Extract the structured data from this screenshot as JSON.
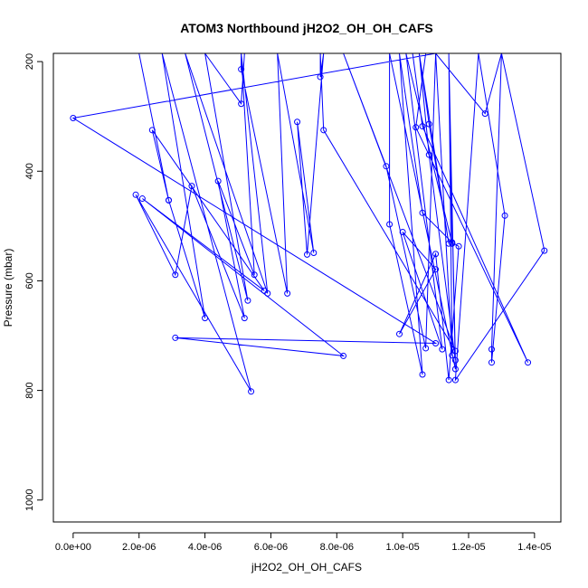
{
  "chart_data": {
    "type": "line",
    "title": "ATOM3 Northbound jH2O2_OH_OH_CAFS",
    "xlabel": "jH2O2_OH_OH_CAFS",
    "ylabel": "Pressure (mbar)",
    "xlim": [
      -6e-07,
      1.48e-05
    ],
    "ylim": [
      1040,
      185
    ],
    "y_axis_inverted": true,
    "x_ticks": [
      0,
      2e-06,
      4e-06,
      6e-06,
      8e-06,
      1e-05,
      1.2e-05,
      1.4e-05
    ],
    "x_tick_labels": [
      "0.0e+00",
      "2.0e-06",
      "4.0e-06",
      "6.0e-06",
      "8.0e-06",
      "1.0e-05",
      "1.2e-05",
      "1.4e-05"
    ],
    "y_ticks": [
      200,
      400,
      600,
      800,
      1000
    ],
    "y_tick_labels": [
      "200",
      "400",
      "600",
      "800",
      "1000"
    ],
    "grid": false,
    "series": [
      {
        "color": "#0000ff",
        "marker": "open-circle",
        "points": [
          [
            2e-06,
            185
          ],
          [
            2.9e-06,
            453
          ],
          [
            4e-06,
            668
          ],
          [
            2.7e-06,
            185
          ],
          [
            5.4e-06,
            802
          ],
          [
            1.9e-06,
            443
          ],
          [
            3.1e-06,
            589
          ],
          [
            3.6e-06,
            427
          ],
          [
            5.2e-06,
            668
          ],
          [
            4.4e-06,
            418
          ],
          [
            5.5e-06,
            589
          ],
          [
            5.1e-06,
            185
          ],
          [
            5.9e-06,
            623
          ],
          [
            3.4e-06,
            185
          ],
          [
            5.3e-06,
            636
          ],
          [
            4e-06,
            185
          ],
          [
            5.1e-06,
            277
          ],
          [
            5.2e-06,
            185
          ],
          [
            5.1e-06,
            185
          ],
          [
            5.1e-06,
            214
          ],
          [
            6.5e-06,
            623
          ],
          [
            6.2e-06,
            185
          ],
          [
            7.3e-06,
            549
          ],
          [
            6.8e-06,
            310
          ],
          [
            7.1e-06,
            552
          ],
          [
            7.6e-06,
            185
          ],
          [
            7.5e-06,
            228
          ],
          [
            7.5e-06,
            185
          ],
          [
            7.5e-06,
            185
          ],
          [
            7.6e-06,
            325
          ],
          [
            1.16e-05,
            728
          ],
          [
            8.2e-06,
            185
          ],
          [
            9.5e-06,
            391
          ],
          [
            1.07e-05,
            723
          ],
          [
            1.1e-05,
            185
          ],
          [
            1.25e-05,
            295
          ],
          [
            1.3e-05,
            185
          ],
          [
            1.43e-05,
            545
          ],
          [
            1.16e-05,
            781
          ],
          [
            1.23e-05,
            185
          ],
          [
            1.31e-05,
            481
          ],
          [
            1.27e-05,
            749
          ],
          [
            1.27e-05,
            725
          ],
          [
            1.3e-05,
            185
          ],
          [
            1.07e-05,
            185
          ],
          [
            1.04e-05,
            320
          ],
          [
            1.38e-05,
            749
          ],
          [
            1.06e-05,
            318
          ],
          [
            1.03e-05,
            185
          ],
          [
            1.05e-05,
            185
          ],
          [
            1.08e-05,
            314
          ],
          [
            1.14e-05,
            532
          ],
          [
            1.05e-05,
            185
          ],
          [
            1.08e-05,
            370
          ],
          [
            1.16e-05,
            745
          ],
          [
            1.14e-05,
            185
          ],
          [
            1.16e-05,
            761
          ],
          [
            9.6e-06,
            185
          ],
          [
            9.6e-06,
            497
          ],
          [
            1.06e-05,
            771
          ],
          [
            9.9e-06,
            185
          ],
          [
            1.06e-05,
            476
          ],
          [
            1.15e-05,
            530
          ],
          [
            1.17e-05,
            537
          ],
          [
            1.14e-05,
            781
          ],
          [
            1.1e-05,
            551
          ],
          [
            9.9e-06,
            697
          ],
          [
            1.1e-05,
            579
          ],
          [
            1e-05,
            511
          ],
          [
            1.12e-05,
            725
          ],
          [
            1.01e-05,
            185
          ],
          [
            1.15e-05,
            532
          ],
          [
            1.14e-05,
            185
          ],
          [
            1.15e-05,
            736
          ],
          [
            1.1e-05,
            185
          ],
          [
            0.0,
            303
          ],
          [
            1.1e-05,
            714
          ],
          [
            3.1e-06,
            704
          ],
          [
            8.2e-06,
            737
          ],
          [
            2.1e-06,
            450
          ],
          [
            5.8e-06,
            618
          ],
          [
            2.4e-06,
            325
          ],
          [
            2.9e-06,
            453
          ]
        ]
      }
    ]
  }
}
